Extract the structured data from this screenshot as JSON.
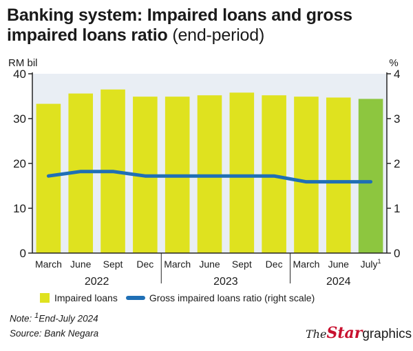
{
  "header": {
    "title_bold": "Banking system: Impaired loans and gross impaired loans ratio",
    "title_light": "(end-period)"
  },
  "colors": {
    "bar": "#dfe21f",
    "bar_highlight": "#8dc63f",
    "line": "#1f6fb5",
    "plot_bg": "#e9eef4",
    "axis": "#222222"
  },
  "chart_data": {
    "type": "bar",
    "categories": [
      "March",
      "June",
      "Sept",
      "Dec",
      "March",
      "June",
      "Sept",
      "Dec",
      "March",
      "June",
      "July"
    ],
    "category_superscripts": [
      "",
      "",
      "",
      "",
      "",
      "",
      "",
      "",
      "",
      "",
      "1"
    ],
    "year_groups": [
      {
        "label": "2022",
        "start": 0,
        "end": 3
      },
      {
        "label": "2023",
        "start": 4,
        "end": 7
      },
      {
        "label": "2024",
        "start": 8,
        "end": 10
      }
    ],
    "series": [
      {
        "name": "Impaired loans",
        "type": "bar",
        "axis": "left",
        "values": [
          33.3,
          35.6,
          36.5,
          34.9,
          34.9,
          35.2,
          35.8,
          35.2,
          34.9,
          34.7,
          34.4
        ],
        "highlight_index": 10
      },
      {
        "name": "Gross impaired loans ratio (right scale)",
        "type": "line",
        "axis": "right",
        "values": [
          1.72,
          1.82,
          1.82,
          1.72,
          1.72,
          1.72,
          1.72,
          1.72,
          1.59,
          1.59,
          1.59
        ]
      }
    ],
    "ylabel_left": "RM bil",
    "ylabel_right": "%",
    "ylim_left": [
      0,
      40
    ],
    "ylim_right": [
      0,
      4
    ],
    "yticks_left": [
      "0",
      "10",
      "20",
      "30",
      "40"
    ],
    "yticks_right": [
      "0",
      "1",
      "2",
      "3",
      "4"
    ],
    "grid": false,
    "legend": "bottom"
  },
  "footer": {
    "note_prefix": "Note: ",
    "note_sup": "1",
    "note_text": "End-July 2024",
    "source": "Source: Bank Negara",
    "logo_the": "The",
    "logo_star": "Star",
    "logo_graphics": "graphics"
  }
}
